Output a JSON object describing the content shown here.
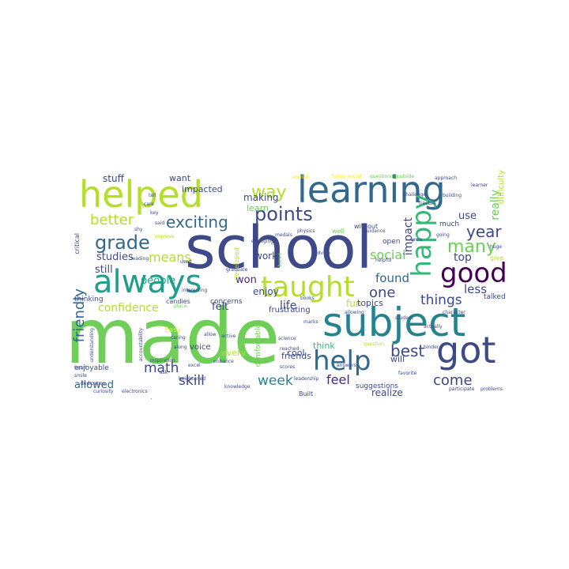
{
  "cloud": {
    "palette": [
      "#440154",
      "#482878",
      "#3e4989",
      "#31688e",
      "#26828e",
      "#1f9e89",
      "#35b779",
      "#6ece58",
      "#b5de2b",
      "#fde725"
    ],
    "words": [
      {
        "text": "made",
        "color": "#6ece58"
      },
      {
        "text": "school",
        "color": "#3e4989"
      },
      {
        "text": "subject",
        "color": "#26828e"
      },
      {
        "text": "helped",
        "color": "#b5de2b"
      },
      {
        "text": "learning",
        "color": "#31688e"
      },
      {
        "text": "got",
        "color": "#3e4989"
      },
      {
        "text": "always",
        "color": "#1f9e89"
      },
      {
        "text": "happy",
        "color": "#35b779"
      },
      {
        "text": "taught",
        "color": "#b5de2b"
      },
      {
        "text": "good",
        "color": "#440154"
      },
      {
        "text": "help",
        "color": "#31688e"
      },
      {
        "text": "points",
        "color": "#3e4989"
      },
      {
        "text": "grade",
        "color": "#31688e"
      },
      {
        "text": "exciting",
        "color": "#31688e"
      },
      {
        "text": "better",
        "color": "#b5de2b"
      },
      {
        "text": "way",
        "color": "#b5de2b"
      },
      {
        "text": "means",
        "color": "#b5de2b"
      },
      {
        "text": "many",
        "color": "#6ece58"
      },
      {
        "text": "year",
        "color": "#3e4989"
      },
      {
        "text": "best",
        "color": "#3e4989"
      },
      {
        "text": "things",
        "color": "#3e4989"
      },
      {
        "text": "one",
        "color": "#3e4989"
      },
      {
        "text": "math",
        "color": "#3e4989"
      },
      {
        "text": "skill",
        "color": "#3e4989"
      },
      {
        "text": "week",
        "color": "#26828e"
      },
      {
        "text": "feel",
        "color": "#482878"
      },
      {
        "text": "come",
        "color": "#3e4989"
      },
      {
        "text": "friendly",
        "color": "#31688e"
      },
      {
        "text": "confidence",
        "color": "#b5de2b"
      },
      {
        "text": "social",
        "color": "#6ece58"
      },
      {
        "text": "found",
        "color": "#31688e"
      },
      {
        "text": "less",
        "color": "#3e4989"
      },
      {
        "text": "top",
        "color": "#3e4989"
      },
      {
        "text": "allowed",
        "color": "#31688e"
      },
      {
        "text": "realize",
        "color": "#3e4989"
      },
      {
        "text": "life",
        "color": "#3e4989"
      },
      {
        "text": "impact",
        "color": "#3e4989"
      },
      {
        "text": "really",
        "color": "#6ece58"
      },
      {
        "text": "use",
        "color": "#3e4989"
      },
      {
        "text": "studies",
        "color": "#3e4989"
      },
      {
        "text": "still",
        "color": "#3e4989"
      },
      {
        "text": "people",
        "color": "#1f9e89"
      },
      {
        "text": "won",
        "color": "#482878"
      },
      {
        "text": "felt",
        "color": "#3e4989"
      },
      {
        "text": "work",
        "color": "#3e4989"
      },
      {
        "text": "enjoy",
        "color": "#3e4989"
      },
      {
        "text": "making",
        "color": "#3e4989"
      },
      {
        "text": "friends",
        "color": "#3e4989"
      },
      {
        "text": "learn",
        "color": "#6ece58"
      },
      {
        "text": "stuff",
        "color": "#3e4989"
      },
      {
        "text": "want",
        "color": "#3e4989"
      },
      {
        "text": "impacted",
        "color": "#3e4989"
      },
      {
        "text": "fun",
        "color": "#b5de2b"
      },
      {
        "text": "topics",
        "color": "#3e4989"
      },
      {
        "text": "cool",
        "color": "#3e4989"
      },
      {
        "text": "will",
        "color": "#3e4989"
      },
      {
        "text": "think",
        "color": "#35b779"
      },
      {
        "text": "every",
        "color": "#b5de2b"
      },
      {
        "text": "voice",
        "color": "#3e4989"
      },
      {
        "text": "frustrating",
        "color": "#3e4989"
      },
      {
        "text": "comfortable",
        "color": "#6ece58"
      },
      {
        "text": "suggestions",
        "color": "#3e4989"
      },
      {
        "text": "enjoyable",
        "color": "#3e4989"
      },
      {
        "text": "thinking",
        "color": "#3e4989"
      },
      {
        "text": "much",
        "color": "#3e4989"
      },
      {
        "text": "open",
        "color": "#3e4989"
      },
      {
        "text": "talked",
        "color": "#3e4989"
      },
      {
        "text": "difficulty",
        "color": "#b5de2b"
      },
      {
        "text": "critical",
        "color": "#3e4989"
      },
      {
        "text": "concerns",
        "color": "#3e4989"
      },
      {
        "text": "candies",
        "color": "#3e4989"
      },
      {
        "text": "developed",
        "color": "#b5de2b"
      },
      {
        "text": "without",
        "color": "#3e4989"
      },
      {
        "text": "well",
        "color": "#6ece58"
      },
      {
        "text": "Built",
        "color": "#3e4989"
      },
      {
        "text": "physics",
        "color": "#3e4989"
      },
      {
        "text": "approach",
        "color": "#3e4989"
      },
      {
        "text": "question",
        "color": "#b5de2b"
      },
      {
        "text": "Easy",
        "color": "#fde725"
      },
      {
        "text": "interesting",
        "color": "#3e4989"
      },
      {
        "text": "knowledge",
        "color": "#3e4989"
      },
      {
        "text": "graduate",
        "color": "#3e4989"
      },
      {
        "text": "give",
        "color": "#b5de2b"
      },
      {
        "text": "character",
        "color": "#3e4989"
      },
      {
        "text": "participate",
        "color": "#3e4989"
      },
      {
        "text": "problems",
        "color": "#3e4989"
      },
      {
        "text": "improve",
        "color": "#b5de2b"
      },
      {
        "text": "reached",
        "color": "#3e4989"
      },
      {
        "text": "leadership",
        "color": "#3e4989"
      },
      {
        "text": "curiosity",
        "color": "#3e4989"
      },
      {
        "text": "electronics",
        "color": "#3e4989"
      },
      {
        "text": "engaging",
        "color": "#3e4989"
      },
      {
        "text": "science",
        "color": "#3e4989"
      },
      {
        "text": "books",
        "color": "#3e4989"
      },
      {
        "text": "advice",
        "color": "#3e4989"
      },
      {
        "text": "guidance",
        "color": "#3e4989"
      },
      {
        "text": "helpful",
        "color": "#3e4989"
      },
      {
        "text": "allowing",
        "color": "#3e4989"
      },
      {
        "text": "answers",
        "color": "#3e4989"
      },
      {
        "text": "inspiration",
        "color": "#3e4989"
      },
      {
        "text": "dedication",
        "color": "#3e4989"
      },
      {
        "text": "understanding",
        "color": "#3e4989"
      },
      {
        "text": "accountability",
        "color": "#3e4989"
      },
      {
        "text": "heightened",
        "color": "#3e4989"
      },
      {
        "text": "binder",
        "color": "#3e4989"
      },
      {
        "text": "favorite",
        "color": "#3e4989"
      },
      {
        "text": "challenge",
        "color": "#3e4989"
      },
      {
        "text": "freebie",
        "color": "#3e4989"
      },
      {
        "text": "learner",
        "color": "#3e4989"
      },
      {
        "text": "expand",
        "color": "#3e4989"
      },
      {
        "text": "english",
        "color": "#fde725"
      },
      {
        "text": "funny",
        "color": "#fde725"
      },
      {
        "text": "social",
        "color": "#fde725"
      },
      {
        "text": "questioning",
        "color": "#6ece58"
      },
      {
        "text": "outside",
        "color": "#6ece58"
      },
      {
        "text": "leading",
        "color": "#3e4989"
      },
      {
        "text": "building",
        "color": "#3e4989"
      },
      {
        "text": "grow",
        "color": "#3e4989"
      },
      {
        "text": "going",
        "color": "#3e4989"
      },
      {
        "text": "huge",
        "color": "#3e4989"
      },
      {
        "text": "student",
        "color": "#3e4989"
      },
      {
        "text": "medals",
        "color": "#3e4989"
      },
      {
        "text": "actually",
        "color": "#3e4989"
      },
      {
        "text": "bored",
        "color": "#6ece58"
      },
      {
        "text": "marks",
        "color": "#3e4989"
      },
      {
        "text": "smile",
        "color": "#3e4989"
      },
      {
        "text": "caring",
        "color": "#3e4989"
      },
      {
        "text": "place",
        "color": "#6ece58"
      },
      {
        "text": "enhance",
        "color": "#3e4989"
      },
      {
        "text": "heart",
        "color": "#3e4989"
      },
      {
        "text": "scores",
        "color": "#3e4989"
      },
      {
        "text": "tell",
        "color": "#3e4989"
      },
      {
        "text": "care",
        "color": "#3e4989"
      },
      {
        "text": "key",
        "color": "#3e4989"
      },
      {
        "text": "said",
        "color": "#3e4989"
      },
      {
        "text": "shy",
        "color": "#3e4989"
      },
      {
        "text": "used",
        "color": "#3e4989"
      },
      {
        "text": "excel",
        "color": "#3e4989"
      },
      {
        "text": "allow",
        "color": "#3e4989"
      },
      {
        "text": "active",
        "color": "#3e4989"
      },
      {
        "text": "along",
        "color": "#3e4989"
      },
      {
        "text": "ask",
        "color": "#3e4989"
      }
    ]
  }
}
